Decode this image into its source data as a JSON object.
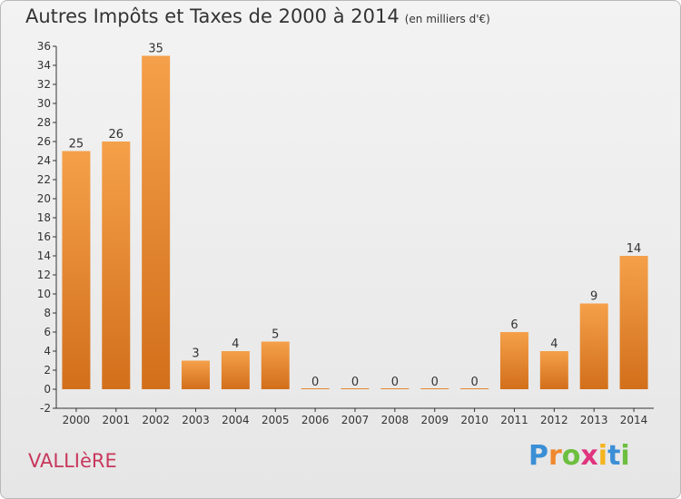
{
  "chart_data": {
    "type": "bar",
    "title": "Autres Impôts et Taxes de 2000 à 2014",
    "unit": "(en milliers d'€)",
    "categories": [
      "2000",
      "2001",
      "2002",
      "2003",
      "2004",
      "2005",
      "2006",
      "2007",
      "2008",
      "2009",
      "2010",
      "2011",
      "2012",
      "2013",
      "2014"
    ],
    "values": [
      25,
      26,
      35,
      3,
      4,
      5,
      0,
      0,
      0,
      0,
      0,
      6,
      4,
      9,
      14
    ],
    "ylim": [
      -2,
      36
    ],
    "yticks": [
      -2,
      0,
      2,
      4,
      6,
      8,
      10,
      12,
      14,
      16,
      18,
      20,
      22,
      24,
      26,
      28,
      30,
      32,
      34,
      36
    ],
    "grid": false,
    "bar_color": "#f39a3c",
    "bar_color_dark": "#d8741d"
  },
  "location": "VALLIèRE",
  "logo": {
    "letters": [
      "P",
      "r",
      "o",
      "x",
      "i",
      "t",
      "i"
    ],
    "colors": [
      "#3a8fd6",
      "#f0892e",
      "#6cbf3f",
      "#e0347f",
      "#f4b41c",
      "#3a8fd6",
      "#6cbf3f"
    ]
  }
}
